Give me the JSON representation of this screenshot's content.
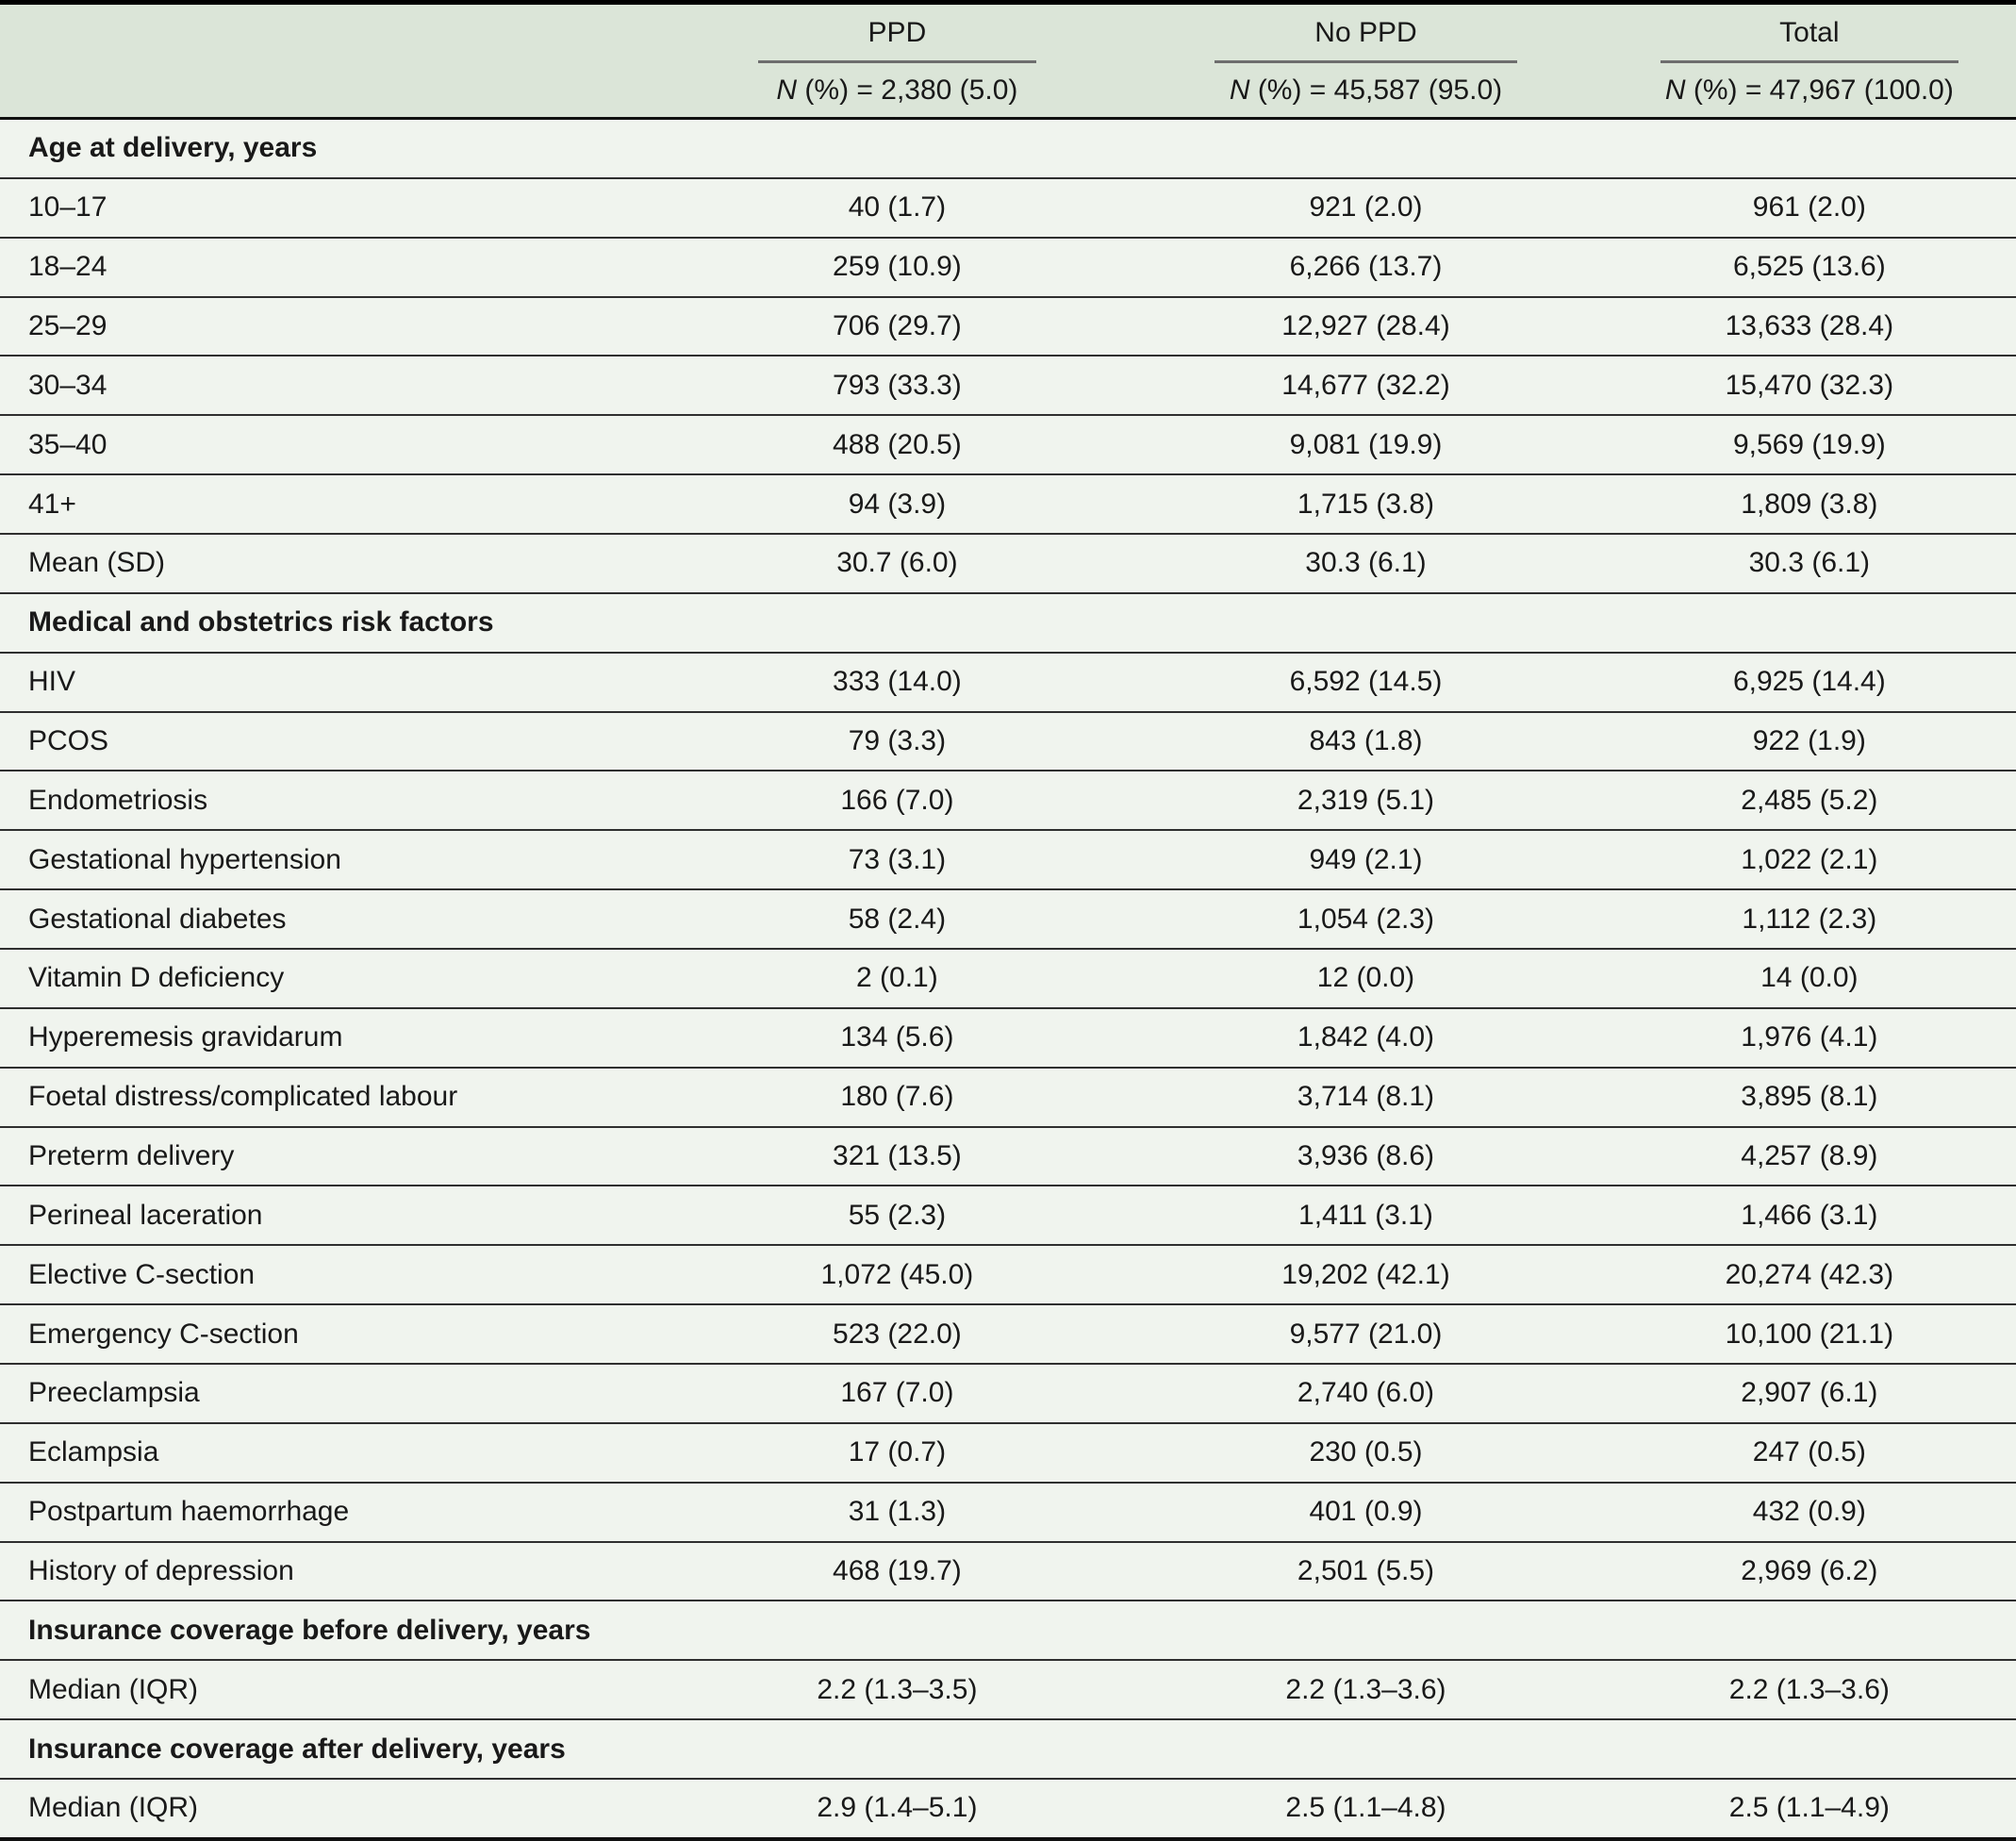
{
  "table": {
    "header": {
      "columns": [
        {
          "label": "PPD",
          "n_italic": "N",
          "n_rest": " (%) = 2,380 (5.0)"
        },
        {
          "label": "No PPD",
          "n_italic": "N",
          "n_rest": " (%) = 45,587 (95.0)"
        },
        {
          "label": "Total",
          "n_italic": "N",
          "n_rest": " (%) = 47,967 (100.0)"
        }
      ]
    },
    "sections": [
      {
        "title": "Age at delivery, years",
        "rows": [
          {
            "label": "10–17",
            "ppd": "40 (1.7)",
            "no_ppd": "921 (2.0)",
            "total": "961 (2.0)"
          },
          {
            "label": "18–24",
            "ppd": "259 (10.9)",
            "no_ppd": "6,266 (13.7)",
            "total": "6,525 (13.6)"
          },
          {
            "label": "25–29",
            "ppd": "706 (29.7)",
            "no_ppd": "12,927 (28.4)",
            "total": "13,633 (28.4)"
          },
          {
            "label": "30–34",
            "ppd": "793 (33.3)",
            "no_ppd": "14,677 (32.2)",
            "total": "15,470 (32.3)"
          },
          {
            "label": "35–40",
            "ppd": "488 (20.5)",
            "no_ppd": "9,081 (19.9)",
            "total": "9,569 (19.9)"
          },
          {
            "label": "41+",
            "ppd": "94 (3.9)",
            "no_ppd": "1,715 (3.8)",
            "total": "1,809 (3.8)"
          },
          {
            "label": "Mean (SD)",
            "ppd": "30.7 (6.0)",
            "no_ppd": "30.3 (6.1)",
            "total": "30.3 (6.1)"
          }
        ]
      },
      {
        "title": "Medical and obstetrics risk factors",
        "rows": [
          {
            "label": "HIV",
            "ppd": "333 (14.0)",
            "no_ppd": "6,592 (14.5)",
            "total": "6,925 (14.4)"
          },
          {
            "label": "PCOS",
            "ppd": "79 (3.3)",
            "no_ppd": "843 (1.8)",
            "total": "922 (1.9)"
          },
          {
            "label": "Endometriosis",
            "ppd": "166 (7.0)",
            "no_ppd": "2,319 (5.1)",
            "total": "2,485 (5.2)"
          },
          {
            "label": "Gestational hypertension",
            "ppd": "73 (3.1)",
            "no_ppd": "949 (2.1)",
            "total": "1,022 (2.1)"
          },
          {
            "label": "Gestational diabetes",
            "ppd": "58 (2.4)",
            "no_ppd": "1,054 (2.3)",
            "total": "1,112 (2.3)"
          },
          {
            "label": "Vitamin D deficiency",
            "ppd": "2 (0.1)",
            "no_ppd": "12 (0.0)",
            "total": "14 (0.0)"
          },
          {
            "label": "Hyperemesis gravidarum",
            "ppd": "134 (5.6)",
            "no_ppd": "1,842 (4.0)",
            "total": "1,976 (4.1)"
          },
          {
            "label": "Foetal distress/complicated labour",
            "ppd": "180 (7.6)",
            "no_ppd": "3,714 (8.1)",
            "total": "3,895 (8.1)"
          },
          {
            "label": "Preterm delivery",
            "ppd": "321 (13.5)",
            "no_ppd": "3,936 (8.6)",
            "total": "4,257 (8.9)"
          },
          {
            "label": "Perineal laceration",
            "ppd": "55 (2.3)",
            "no_ppd": "1,411 (3.1)",
            "total": "1,466 (3.1)"
          },
          {
            "label": "Elective C-section",
            "ppd": "1,072 (45.0)",
            "no_ppd": "19,202 (42.1)",
            "total": "20,274 (42.3)"
          },
          {
            "label": "Emergency C-section",
            "ppd": "523 (22.0)",
            "no_ppd": "9,577 (21.0)",
            "total": "10,100 (21.1)"
          },
          {
            "label": "Preeclampsia",
            "ppd": "167 (7.0)",
            "no_ppd": "2,740 (6.0)",
            "total": "2,907 (6.1)"
          },
          {
            "label": "Eclampsia",
            "ppd": "17 (0.7)",
            "no_ppd": "230 (0.5)",
            "total": "247 (0.5)"
          },
          {
            "label": "Postpartum haemorrhage",
            "ppd": "31 (1.3)",
            "no_ppd": "401 (0.9)",
            "total": "432 (0.9)"
          },
          {
            "label": "History of depression",
            "ppd": "468 (19.7)",
            "no_ppd": "2,501 (5.5)",
            "total": "2,969 (6.2)"
          }
        ]
      },
      {
        "title": "Insurance coverage before delivery, years",
        "rows": [
          {
            "label": "Median (IQR)",
            "ppd": "2.2 (1.3–3.5)",
            "no_ppd": "2.2 (1.3–3.6)",
            "total": "2.2 (1.3–3.6)"
          }
        ]
      },
      {
        "title": "Insurance coverage after delivery, years",
        "rows": [
          {
            "label": "Median (IQR)",
            "ppd": "2.9 (1.4–5.1)",
            "no_ppd": "2.5 (1.1–4.8)",
            "total": "2.5 (1.1–4.9)"
          }
        ]
      }
    ]
  },
  "colors": {
    "header_bg": "#dbe5d8",
    "body_bg": "#f0f4ee",
    "row_rule": "#2f2f2f",
    "header_rule": "#6e6e6e",
    "text": "#191919"
  }
}
